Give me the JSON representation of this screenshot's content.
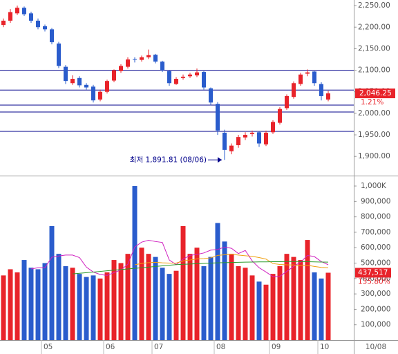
{
  "chart_data": [
    {
      "type": "candlestick",
      "open": [
        2205,
        2215,
        2232,
        2245,
        2232,
        2215,
        2202,
        2195,
        2162,
        2108,
        2070,
        2082,
        2066,
        2062,
        2032,
        2050,
        2076,
        2098,
        2108,
        2126,
        2124,
        2130,
        2136,
        2120,
        2098,
        2068,
        2082,
        2086,
        2088,
        2096,
        2058,
        2022,
        1955,
        1912,
        1926,
        1944,
        1952,
        1956,
        1928,
        1956,
        1978,
        2012,
        2038,
        2068,
        2092,
        2097,
        2068,
        2032
      ],
      "high": [
        2220,
        2242,
        2250,
        2248,
        2236,
        2220,
        2206,
        2198,
        2166,
        2112,
        2088,
        2086,
        2070,
        2066,
        2055,
        2078,
        2102,
        2114,
        2130,
        2130,
        2134,
        2148,
        2138,
        2122,
        2100,
        2084,
        2090,
        2094,
        2104,
        2098,
        2060,
        2026,
        1962,
        1930,
        1950,
        1956,
        1960,
        1958,
        1960,
        1984,
        2014,
        2044,
        2074,
        2094,
        2102,
        2098,
        2072,
        2052
      ],
      "low": [
        2200,
        2210,
        2228,
        2226,
        2210,
        2195,
        2190,
        2160,
        2105,
        2068,
        2066,
        2060,
        2055,
        2025,
        2028,
        2046,
        2072,
        2094,
        2104,
        2118,
        2120,
        2126,
        2116,
        2096,
        2064,
        2066,
        2078,
        2082,
        2084,
        2055,
        2018,
        1950,
        1891.81,
        1905,
        1920,
        1938,
        1946,
        1922,
        1924,
        1952,
        1974,
        2008,
        2034,
        2064,
        2086,
        2064,
        2030,
        2028
      ],
      "close": [
        2215,
        2235,
        2245,
        2230,
        2215,
        2200,
        2195,
        2165,
        2110,
        2075,
        2080,
        2065,
        2060,
        2030,
        2050,
        2075,
        2100,
        2110,
        2125,
        2125,
        2130,
        2135,
        2120,
        2100,
        2070,
        2080,
        2085,
        2090,
        2095,
        2060,
        2025,
        1960,
        1915,
        1925,
        1945,
        1950,
        1955,
        1930,
        1955,
        1980,
        2010,
        2040,
        2070,
        2090,
        2095,
        2070,
        2040,
        2046.25
      ],
      "up_color": "#e8232a",
      "down_color": "#2a5ccc",
      "ylim": [
        1857,
        2263
      ],
      "yticks": [
        {
          "value": 1900,
          "label": "1,900.00"
        },
        {
          "value": 1950,
          "label": "1,950.00"
        },
        {
          "value": 2000,
          "label": "2,000.00"
        },
        {
          "value": 2050,
          "label": "2,050.00"
        },
        {
          "value": 2100,
          "label": "2,100.00"
        },
        {
          "value": 2150,
          "label": "2,150.00"
        },
        {
          "value": 2200,
          "label": "2,200.00"
        },
        {
          "value": 2250,
          "label": "2,250.00"
        }
      ],
      "hlines": [
        2100,
        2054,
        2019,
        2003,
        1958
      ],
      "hline_color": "#00008b",
      "price_tag": {
        "value": 2046.25,
        "label": "2,046.25"
      },
      "change_pct": {
        "value": 1.21,
        "label": "1.21%"
      },
      "low_annotation": "최저 1,891.81 (08/06)"
    },
    {
      "type": "volume",
      "categories": [
        null,
        null,
        null,
        null,
        null,
        null,
        "05",
        null,
        null,
        null,
        null,
        null,
        null,
        null,
        null,
        "06",
        null,
        null,
        null,
        null,
        null,
        null,
        "07",
        null,
        null,
        null,
        null,
        null,
        null,
        null,
        null,
        "08",
        null,
        null,
        null,
        null,
        null,
        null,
        null,
        "09",
        null,
        null,
        null,
        null,
        null,
        null,
        "10",
        null
      ],
      "values": [
        420000,
        460000,
        440000,
        520000,
        470000,
        460000,
        500000,
        740000,
        560000,
        480000,
        470000,
        430000,
        410000,
        420000,
        400000,
        440000,
        520000,
        500000,
        560000,
        1000000,
        600000,
        560000,
        540000,
        470000,
        430000,
        450000,
        740000,
        560000,
        600000,
        480000,
        540000,
        760000,
        640000,
        560000,
        480000,
        470000,
        420000,
        380000,
        360000,
        430000,
        480000,
        560000,
        540000,
        520000,
        650000,
        440000,
        400000,
        437517
      ],
      "value_labels_last": "437,517",
      "series": [
        {
          "color": "#d020c0",
          "values": [
            null,
            null,
            null,
            null,
            462000,
            470000,
            470000,
            538000,
            546000,
            552000,
            552000,
            536000,
            474000,
            442000,
            426000,
            420000,
            438000,
            456000,
            492000,
            604000,
            636000,
            648000,
            640000,
            634000,
            520000,
            490000,
            526000,
            550000,
            556000,
            566000,
            584000,
            588000,
            604000,
            596000,
            562000,
            582000,
            514000,
            470000,
            442000,
            412000,
            414000,
            446000,
            478000,
            506000,
            550000,
            542000,
            510000,
            489503
          ]
        },
        {
          "color": "#f0a010",
          "values": [
            null,
            null,
            null,
            null,
            null,
            null,
            null,
            null,
            null,
            null,
            null,
            null,
            null,
            null,
            null,
            null,
            null,
            null,
            null,
            489000,
            498000,
            503000,
            505000,
            502000,
            500000,
            500000,
            514000,
            520000,
            527000,
            529000,
            534000,
            550000,
            554000,
            557000,
            552000,
            548000,
            544000,
            536000,
            526000,
            497000,
            491000,
            489000,
            488000,
            484000,
            486000,
            478000,
            472000,
            470000
          ]
        },
        {
          "color": "#2a9a2a",
          "values": [
            null,
            null,
            null,
            null,
            null,
            null,
            null,
            null,
            null,
            null,
            430000,
            434000,
            438000,
            442000,
            446000,
            450000,
            454000,
            458000,
            462000,
            466000,
            470000,
            474000,
            478000,
            482000,
            486000,
            490000,
            492000,
            494000,
            496000,
            498000,
            500000,
            502000,
            503000,
            504000,
            505000,
            506000,
            507000,
            508000,
            508000,
            509000,
            509000,
            510000,
            510000,
            510000,
            509000,
            508000,
            507000,
            506000
          ]
        }
      ],
      "ylim": [
        0,
        1063000
      ],
      "yticks": [
        {
          "value": 100000,
          "label": "100,000"
        },
        {
          "value": 200000,
          "label": "200,000"
        },
        {
          "value": 300000,
          "label": "300,000"
        },
        {
          "value": 400000,
          "label": "400,000"
        },
        {
          "value": 500000,
          "label": "500,000"
        },
        {
          "value": 600000,
          "label": "600,000"
        },
        {
          "value": 700000,
          "label": "700,000"
        },
        {
          "value": 800000,
          "label": "800,000"
        },
        {
          "value": 900000,
          "label": "900,000"
        },
        {
          "value": 1000000,
          "label": "1,000K"
        }
      ],
      "volume_ratio": {
        "value": 135.8,
        "label": "135.80%"
      },
      "current_date": "10/08"
    }
  ]
}
